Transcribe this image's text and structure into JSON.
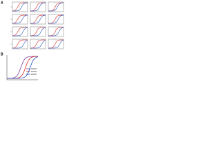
{
  "figure": {
    "panels": [
      {
        "label": "A"
      },
      {
        "label": "B"
      }
    ]
  }
}
